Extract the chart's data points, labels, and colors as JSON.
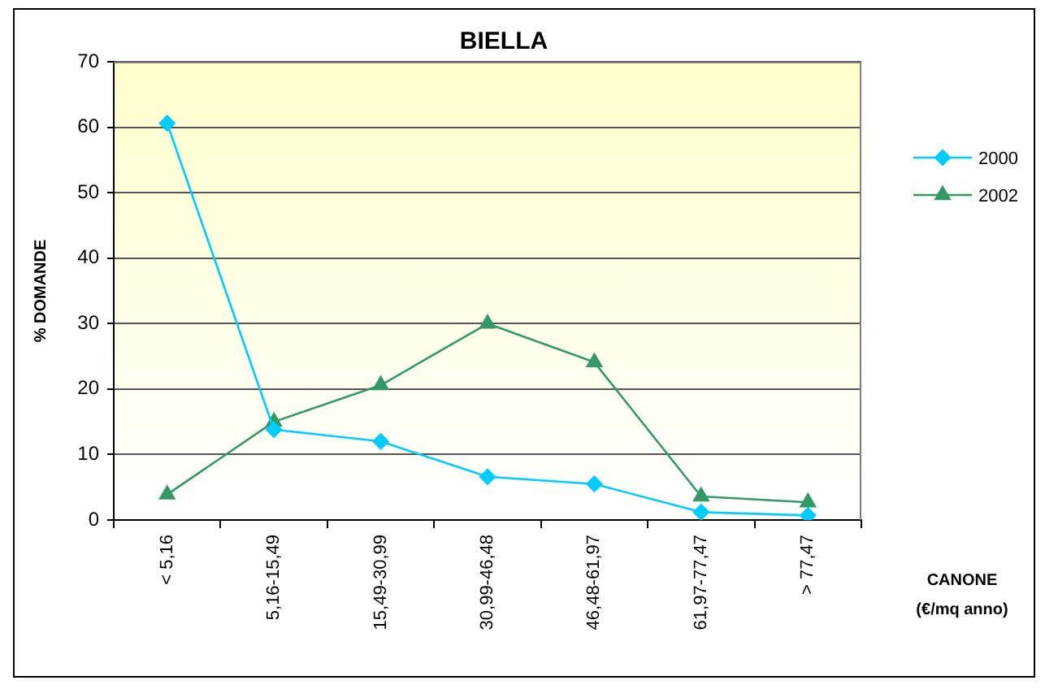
{
  "chart_data": {
    "type": "line",
    "title": "BIELLA",
    "xlabel": "CANONE (€/mq anno)",
    "ylabel": "% DOMANDE",
    "categories": [
      "< 5,16",
      "5,16-15,49",
      "15,49-30,99",
      "30,99-46,48",
      "46,48-61,97",
      "61,97-77,47",
      "> 77,47"
    ],
    "series": [
      {
        "name": "2000",
        "color": "#00ccff",
        "marker": "diamond",
        "values": [
          60.6,
          13.8,
          12.0,
          6.6,
          5.5,
          1.2,
          0.7
        ]
      },
      {
        "name": "2002",
        "color": "#339966",
        "marker": "triangle",
        "values": [
          3.9,
          15.0,
          20.6,
          30.0,
          24.1,
          3.6,
          2.7
        ]
      }
    ],
    "ylim": [
      0,
      70
    ],
    "yticks": [
      0,
      10,
      20,
      30,
      40,
      50,
      60,
      70
    ],
    "grid": "y",
    "legend": "right"
  }
}
